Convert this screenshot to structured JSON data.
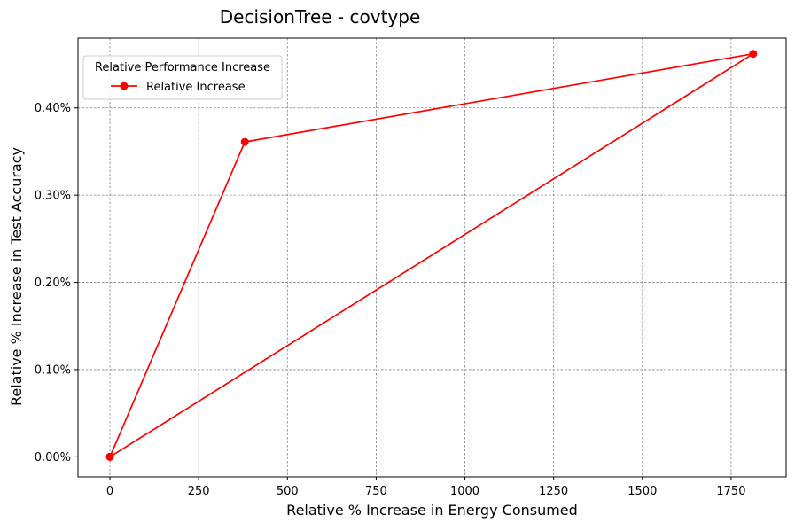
{
  "chart_data": {
    "type": "line",
    "title": "DecisionTree - covtype",
    "xlabel": "Relative % Increase in Energy Consumed",
    "ylabel": "Relative % Increase in Test Accuracy",
    "xlim": [
      -90,
      1905
    ],
    "ylim": [
      -0.023,
      0.48
    ],
    "xticks": [
      0,
      250,
      500,
      750,
      1000,
      1250,
      1500,
      1750
    ],
    "yticks": [
      0.0,
      0.1,
      0.2,
      0.3,
      0.4
    ],
    "xtick_labels": [
      "0",
      "250",
      "500",
      "750",
      "1000",
      "1250",
      "1500",
      "1750"
    ],
    "ytick_labels": [
      "0.00%",
      "0.10%",
      "0.20%",
      "0.30%",
      "0.40%"
    ],
    "grid": true,
    "legend": {
      "title": "Relative Performance Increase",
      "placement": "top-left",
      "entries": [
        "Relative Increase"
      ]
    },
    "series": [
      {
        "name": "Relative Increase",
        "color": "#ff0000",
        "marker": "circle",
        "points": [
          {
            "x": 0,
            "y": 0.0
          },
          {
            "x": 380,
            "y": 0.361
          },
          {
            "x": 1812,
            "y": 0.462
          },
          {
            "x": 0,
            "y": 0.0
          }
        ]
      }
    ]
  }
}
